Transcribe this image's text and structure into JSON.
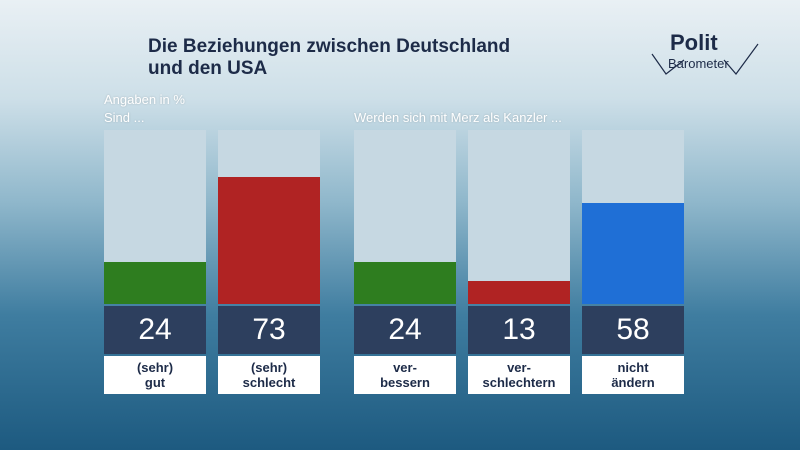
{
  "title_line1": "Die Beziehungen zwischen Deutschland",
  "title_line2": "und den USA",
  "logo": {
    "polit": "Polit",
    "barometer": "Barometer"
  },
  "unit_label": "Angaben in %",
  "panels": [
    {
      "heading": "Sind ..."
    },
    {
      "heading": "Werden sich mit Merz als Kanzler ..."
    }
  ],
  "colors": {
    "green": "#2e7d1f",
    "red": "#b02323",
    "blue": "#1f6fd6",
    "track": "#c6d8e2",
    "value_box": "#2d3f5e"
  },
  "chart_data": [
    {
      "type": "bar",
      "title": "Die Beziehungen zwischen Deutschland und den USA",
      "subtitle": "Sind ...",
      "unit": "Angaben in %",
      "ylim": [
        0,
        100
      ],
      "grid": false,
      "categories": [
        {
          "line1": "(sehr)",
          "line2": "gut"
        },
        {
          "line1": "(sehr)",
          "line2": "schlecht"
        }
      ],
      "values": [
        24,
        73
      ],
      "colors": [
        "#2e7d1f",
        "#b02323"
      ]
    },
    {
      "type": "bar",
      "title": "Die Beziehungen zwischen Deutschland und den USA",
      "subtitle": "Werden sich mit Merz als Kanzler ...",
      "unit": "Angaben in %",
      "ylim": [
        0,
        100
      ],
      "grid": false,
      "categories": [
        {
          "line1": "ver-",
          "line2": "bessern"
        },
        {
          "line1": "ver-",
          "line2": "schlechtern"
        },
        {
          "line1": "nicht",
          "line2": "ändern"
        }
      ],
      "values": [
        24,
        13,
        58
      ],
      "colors": [
        "#2e7d1f",
        "#b02323",
        "#1f6fd6"
      ]
    }
  ]
}
